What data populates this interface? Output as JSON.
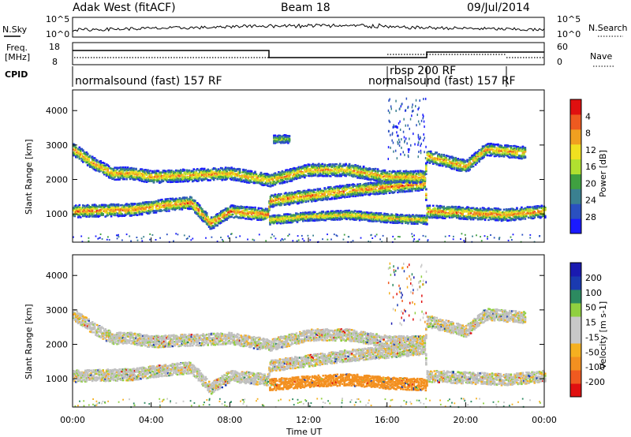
{
  "header": {
    "station": "Adak West (fitACF)",
    "beam": "Beam 18",
    "date": "09/Jul/2014"
  },
  "strip": {
    "nsky_label": "N.Sky",
    "nsky_ticks": [
      "10^5",
      "10^0"
    ],
    "nsearch_label": "N.Search",
    "nsearch_ticks": [
      "10^5",
      "10^0"
    ],
    "freq_label_1": "Freq.",
    "freq_label_2": "[MHz]",
    "freq_ticks": [
      "18",
      "8"
    ],
    "nave_label": "Nave",
    "nave_ticks": [
      "60",
      "0"
    ],
    "cpid_label": "CPID",
    "cpid_segments": [
      {
        "label": "normalsound (fast) 157 RF",
        "start_hour": 0
      },
      {
        "label": "rbsp 200 RF",
        "start_hour": 16
      },
      {
        "label": "normalsound (fast) 157 RF",
        "start_hour": 18
      }
    ]
  },
  "chart_data": [
    {
      "type": "heatmap",
      "panel": "power",
      "ylabel": "Slant Range [km]",
      "xlabel": "Time UT",
      "x_ticks": [
        "00:00",
        "04:00",
        "08:00",
        "12:00",
        "16:00",
        "20:00",
        "00:00"
      ],
      "x_range_hours": [
        0,
        24
      ],
      "y_ticks": [
        "1000",
        "2000",
        "3000",
        "4000"
      ],
      "ylim": [
        180,
        4600
      ],
      "colorbar_label": "Power [dB]",
      "colorbar_ticks": [
        "4",
        "8",
        "12",
        "16",
        "20",
        "24",
        "28"
      ],
      "colorbar_range": [
        0,
        30
      ],
      "bands": [
        {
          "name": "lower",
          "points": [
            [
              0,
              1100
            ],
            [
              3,
              1150
            ],
            [
              5,
              1300
            ],
            [
              6,
              1350
            ],
            [
              7,
              750
            ],
            [
              8,
              1100
            ],
            [
              9.9,
              1000
            ],
            [
              10,
              1400
            ],
            [
              12,
              1550
            ],
            [
              14,
              1700
            ],
            [
              16,
              1800
            ],
            [
              17.9,
              1900
            ],
            [
              18,
              1100
            ],
            [
              20,
              1050
            ],
            [
              22,
              1000
            ],
            [
              24,
              1100
            ]
          ],
          "peak_db": 26
        },
        {
          "name": "low-range",
          "points": [
            [
              10,
              850
            ],
            [
              12,
              950
            ],
            [
              14,
              1000
            ],
            [
              16,
              900
            ],
            [
              18,
              850
            ]
          ],
          "peak_db": 22
        },
        {
          "name": "upper",
          "points": [
            [
              0,
              2900
            ],
            [
              1,
              2500
            ],
            [
              2,
              2200
            ],
            [
              3,
              2200
            ],
            [
              4,
              2100
            ],
            [
              6,
              2150
            ],
            [
              8,
              2200
            ],
            [
              10,
              2000
            ],
            [
              12,
              2300
            ],
            [
              14,
              2300
            ],
            [
              16,
              2100
            ],
            [
              17.9,
              2100
            ],
            [
              18,
              2700
            ],
            [
              20,
              2400
            ],
            [
              21,
              2900
            ],
            [
              23,
              2800
            ]
          ],
          "peak_db": 24
        },
        {
          "name": "patch",
          "points": [
            [
              10.2,
              3200
            ],
            [
              11,
              3200
            ]
          ],
          "peak_db": 14
        }
      ]
    },
    {
      "type": "heatmap",
      "panel": "velocity",
      "ylabel": "Slant Range [km]",
      "xlabel": "Time UT",
      "x_ticks": [
        "00:00",
        "04:00",
        "08:00",
        "12:00",
        "16:00",
        "20:00",
        "00:00"
      ],
      "x_range_hours": [
        0,
        24
      ],
      "y_ticks": [
        "1000",
        "2000",
        "3000",
        "4000"
      ],
      "ylim": [
        180,
        4600
      ],
      "colorbar_label": "Velocity [m s-1]",
      "colorbar_ticks": [
        "200",
        "100",
        "50",
        "15",
        "-15",
        "-50",
        "-100",
        "-200"
      ],
      "colorbar_range": [
        -250,
        250
      ],
      "bands": [
        {
          "name": "lower",
          "points": [
            [
              0,
              1100
            ],
            [
              3,
              1150
            ],
            [
              5,
              1300
            ],
            [
              6,
              1350
            ],
            [
              7,
              750
            ],
            [
              8,
              1100
            ],
            [
              9.9,
              1000
            ],
            [
              10,
              1400
            ],
            [
              12,
              1550
            ],
            [
              14,
              1700
            ],
            [
              16,
              1800
            ],
            [
              17.9,
              1900
            ],
            [
              18,
              1100
            ],
            [
              20,
              1050
            ],
            [
              22,
              1000
            ],
            [
              24,
              1100
            ]
          ],
          "velocity": 0
        },
        {
          "name": "upper",
          "points": [
            [
              0,
              2900
            ],
            [
              1,
              2500
            ],
            [
              2,
              2200
            ],
            [
              3,
              2200
            ],
            [
              4,
              2100
            ],
            [
              6,
              2150
            ],
            [
              8,
              2200
            ],
            [
              10,
              2000
            ],
            [
              12,
              2300
            ],
            [
              14,
              2300
            ],
            [
              16,
              2100
            ],
            [
              17.9,
              2100
            ],
            [
              18,
              2700
            ],
            [
              20,
              2400
            ],
            [
              21,
              2900
            ],
            [
              23,
              2800
            ]
          ],
          "velocity": 0
        },
        {
          "name": "flow",
          "points": [
            [
              10,
              850
            ],
            [
              12,
              950
            ],
            [
              14,
              1000
            ],
            [
              16,
              900
            ],
            [
              18,
              850
            ]
          ],
          "velocity": -80
        }
      ]
    }
  ],
  "colors": {
    "power_scale": [
      "#1a1aff",
      "#2a50c0",
      "#3a8090",
      "#3fa040",
      "#b0e030",
      "#f0e020",
      "#f0a020",
      "#ee5a20",
      "#e01010"
    ],
    "velocity_scale": [
      "#e01010",
      "#f05a20",
      "#f39020",
      "#f5b020",
      "#c8c8c8",
      "#c8c8c8",
      "#90d040",
      "#2c8a60",
      "#1a3ab0",
      "#1a1ab0"
    ],
    "ground": "#c0c0c0"
  }
}
